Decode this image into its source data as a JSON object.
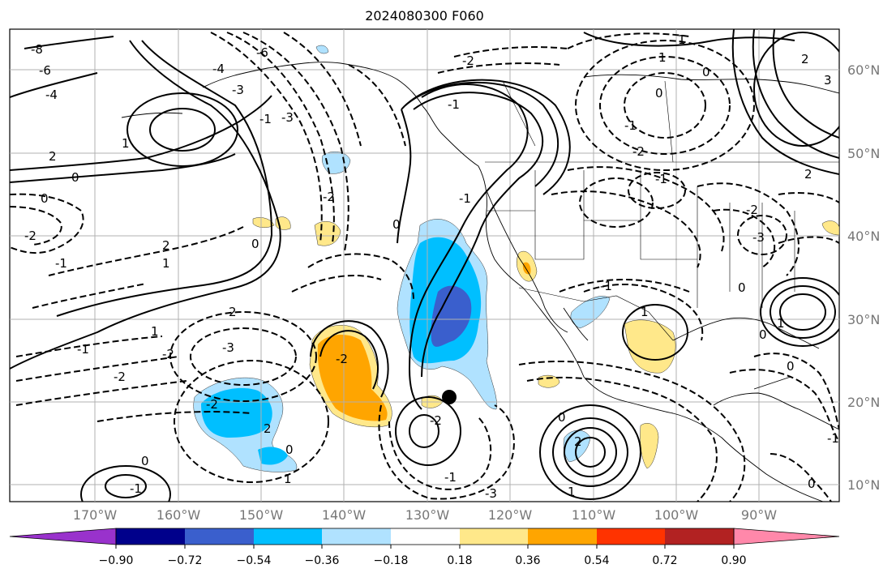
{
  "title": "2024080300 F060",
  "map": {
    "lat_labels": [
      "60°N",
      "50°N",
      "40°N",
      "30°N",
      "20°N",
      "10°N"
    ],
    "lon_labels": [
      "170°W",
      "160°W",
      "150°W",
      "140°W",
      "130°W",
      "120°W",
      "110°W",
      "100°W",
      "90°W"
    ],
    "contour_labels": [
      "-8",
      "-6",
      "-4",
      "-6",
      "-4",
      "-3",
      "-2",
      "-1",
      "0",
      "1",
      "2",
      "-2",
      "-1",
      "0",
      "2",
      "1",
      "0",
      "-1",
      "-2",
      "-3",
      "-2",
      "2",
      "1",
      "0",
      "-1",
      "-2",
      "0",
      "-1",
      "0",
      "1",
      "2",
      "-2",
      "-1",
      "-3",
      "-2",
      "0",
      "1",
      "2",
      "-1",
      "0",
      "-1",
      "-2",
      "0",
      "1",
      "-1",
      "-2",
      "-3",
      "0",
      "1",
      "2",
      "3",
      "0",
      "1",
      "2",
      "-1",
      "0",
      "1",
      "-3",
      "-2",
      "-1",
      "0"
    ],
    "marker": "black-dot"
  },
  "colorbar": {
    "ticks": [
      "−0.90",
      "−0.72",
      "−0.54",
      "−0.36",
      "−0.18",
      "0.18",
      "0.36",
      "0.54",
      "0.72",
      "0.90"
    ],
    "colors": [
      "#9932cc",
      "#00008b",
      "#3a5fcd",
      "#00bfff",
      "#b0e2ff",
      "#ffffff",
      "#ffe88a",
      "#ffa500",
      "#ff3300",
      "#b22222",
      "#ff88aa"
    ]
  }
}
